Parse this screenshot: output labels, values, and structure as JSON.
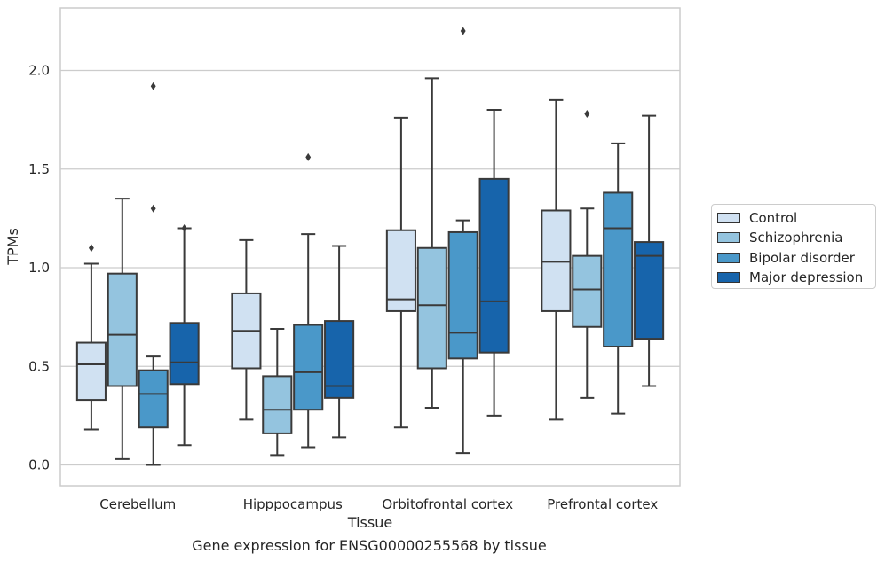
{
  "chart_data": {
    "type": "box",
    "title": "",
    "xlabel": "Tissue",
    "ylabel": "TPMs",
    "ylim": [
      -0.1,
      2.32
    ],
    "yticks": [
      "0.0",
      "0.5",
      "1.0",
      "1.5",
      "2.0"
    ],
    "grid": "horizontal",
    "legend_position": "right",
    "categories": [
      "Cerebellum",
      "Hipppocampus",
      "Orbitofrontal cortex",
      "Prefrontal cortex"
    ],
    "series": [
      {
        "name": "Control",
        "color": "#d0e1f2",
        "boxes": [
          {
            "min": 0.18,
            "q1": 0.33,
            "median": 0.51,
            "q3": 0.62,
            "max": 1.02,
            "outliers": [
              1.1
            ]
          },
          {
            "min": 0.23,
            "q1": 0.49,
            "median": 0.68,
            "q3": 0.87,
            "max": 1.14,
            "outliers": []
          },
          {
            "min": 0.19,
            "q1": 0.78,
            "median": 0.84,
            "q3": 1.19,
            "max": 1.76,
            "outliers": []
          },
          {
            "min": 0.23,
            "q1": 0.78,
            "median": 1.03,
            "q3": 1.29,
            "max": 1.85,
            "outliers": []
          }
        ]
      },
      {
        "name": "Schizophrenia",
        "color": "#94c4df",
        "boxes": [
          {
            "min": 0.03,
            "q1": 0.4,
            "median": 0.66,
            "q3": 0.97,
            "max": 1.35,
            "outliers": []
          },
          {
            "min": 0.05,
            "q1": 0.16,
            "median": 0.28,
            "q3": 0.45,
            "max": 0.69,
            "outliers": []
          },
          {
            "min": 0.29,
            "q1": 0.49,
            "median": 0.81,
            "q3": 1.1,
            "max": 1.96,
            "outliers": []
          },
          {
            "min": 0.34,
            "q1": 0.7,
            "median": 0.89,
            "q3": 1.06,
            "max": 1.3,
            "outliers": [
              1.78
            ]
          }
        ]
      },
      {
        "name": "Bipolar disorder",
        "color": "#4a98c9",
        "boxes": [
          {
            "min": 0.0,
            "q1": 0.19,
            "median": 0.36,
            "q3": 0.48,
            "max": 0.55,
            "outliers": [
              1.3,
              1.92
            ]
          },
          {
            "min": 0.09,
            "q1": 0.28,
            "median": 0.47,
            "q3": 0.71,
            "max": 1.17,
            "outliers": [
              1.56
            ]
          },
          {
            "min": 0.06,
            "q1": 0.54,
            "median": 0.67,
            "q3": 1.18,
            "max": 1.24,
            "outliers": [
              2.2
            ]
          },
          {
            "min": 0.26,
            "q1": 0.6,
            "median": 1.2,
            "q3": 1.38,
            "max": 1.63,
            "outliers": []
          }
        ]
      },
      {
        "name": "Major depression",
        "color": "#1764ab",
        "boxes": [
          {
            "min": 0.1,
            "q1": 0.41,
            "median": 0.52,
            "q3": 0.72,
            "max": 1.2,
            "outliers": [
              1.2
            ]
          },
          {
            "min": 0.14,
            "q1": 0.34,
            "median": 0.4,
            "q3": 0.73,
            "max": 1.11,
            "outliers": []
          },
          {
            "min": 0.25,
            "q1": 0.57,
            "median": 0.83,
            "q3": 1.45,
            "max": 1.8,
            "outliers": []
          },
          {
            "min": 0.4,
            "q1": 0.64,
            "median": 1.06,
            "q3": 1.13,
            "max": 1.77,
            "outliers": []
          }
        ]
      }
    ]
  },
  "caption": "Gene expression for ENSG00000255568 by tissue"
}
